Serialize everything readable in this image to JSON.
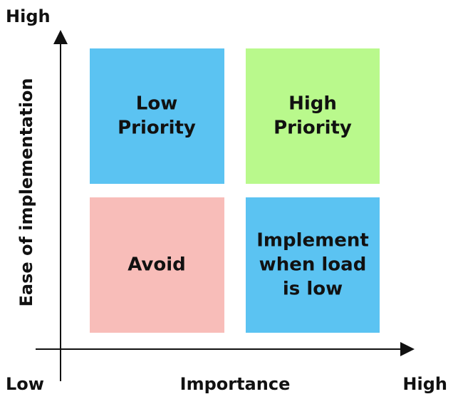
{
  "axes": {
    "y_high": "High",
    "y_label": "Ease of implementation",
    "x_low": "Low",
    "x_label": "Importance",
    "x_high": "High"
  },
  "quadrants": [
    {
      "lines": [
        "Low",
        "Priority"
      ]
    },
    {
      "lines": [
        "High",
        "Priority"
      ]
    },
    {
      "lines": [
        "Avoid"
      ]
    },
    {
      "lines": [
        "Implement",
        "when load",
        "is low"
      ]
    }
  ]
}
